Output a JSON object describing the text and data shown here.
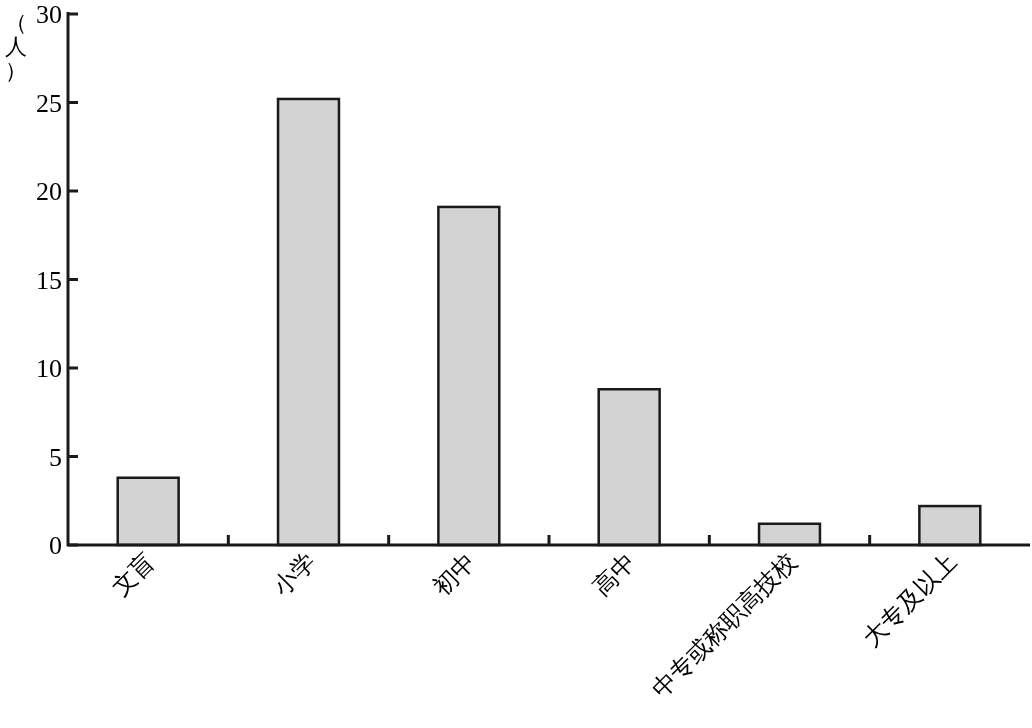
{
  "chart_data": {
    "type": "bar",
    "ylabel": "（人）",
    "categories": [
      "文盲",
      "小学",
      "初中",
      "高中",
      "中专或称职高技校",
      "大专及以上"
    ],
    "values": [
      3.8,
      25.2,
      19.1,
      8.8,
      1.2,
      2.2
    ],
    "color": "#d3d3d3",
    "ylim": [
      0,
      30
    ],
    "yticks": [
      0,
      5,
      10,
      15,
      20,
      25,
      30
    ],
    "grid": false
  }
}
